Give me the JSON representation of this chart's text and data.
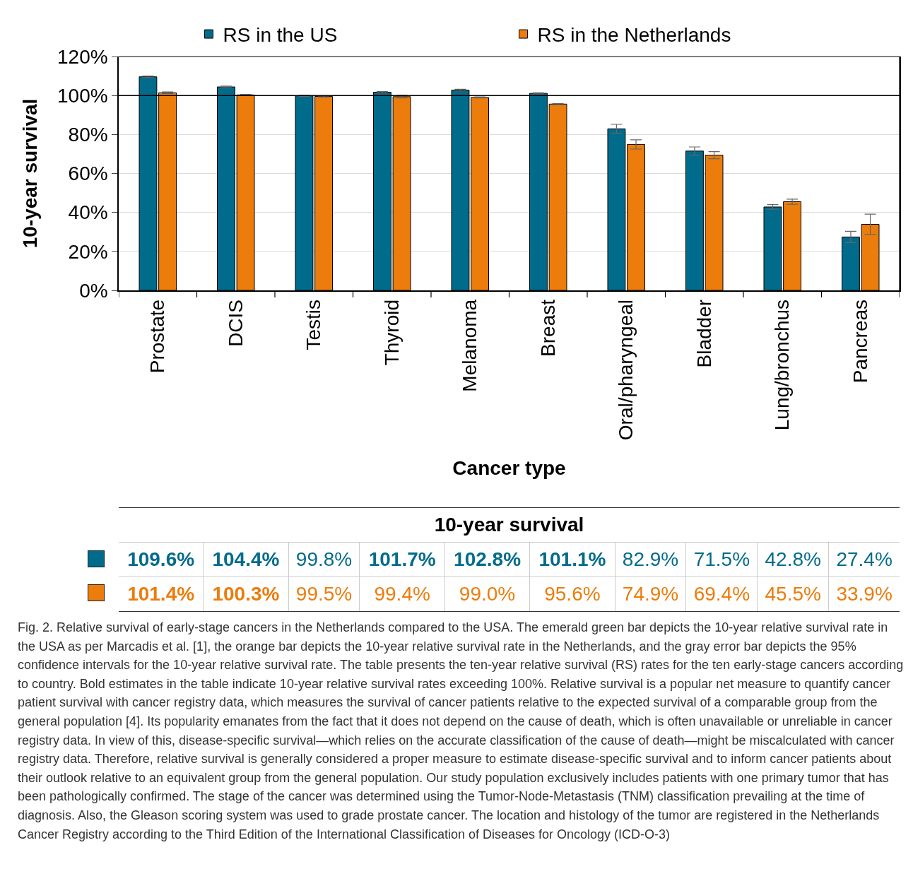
{
  "chart_data": {
    "type": "bar",
    "xlabel": "Cancer type",
    "ylabel": "10-year survival",
    "categories": [
      "Prostate",
      "DCIS",
      "Testis",
      "Thyroid",
      "Melanoma",
      "Breast",
      "Oral/pharyngeal",
      "Bladder",
      "Lung/bronchus",
      "Pancreas"
    ],
    "series": [
      {
        "name": "RS in the US",
        "color": "#016b8c",
        "values": [
          109.6,
          104.4,
          99.8,
          101.7,
          102.8,
          101.1,
          82.9,
          71.5,
          42.8,
          27.4
        ],
        "errors": [
          0.4,
          0.4,
          0.3,
          0.3,
          0.4,
          0.3,
          2.3,
          2.1,
          1.2,
          2.9
        ],
        "value_labels": [
          "109.6%",
          "104.4%",
          "99.8%",
          "101.7%",
          "102.8%",
          "101.1%",
          "82.9%",
          "71.5%",
          "42.8%",
          "27.4%"
        ]
      },
      {
        "name": "RS in the Netherlands",
        "color": "#ec7c0b",
        "values": [
          101.4,
          100.3,
          99.5,
          99.4,
          99.0,
          95.6,
          74.9,
          69.4,
          45.5,
          33.9
        ],
        "errors": [
          0.4,
          0.3,
          0.3,
          0.7,
          0.3,
          0.3,
          2.4,
          1.8,
          1.3,
          5.2
        ],
        "value_labels": [
          "101.4%",
          "100.3%",
          "99.5%",
          "99.4%",
          "99.0%",
          "95.6%",
          "74.9%",
          "69.4%",
          "45.5%",
          "33.9%"
        ]
      }
    ],
    "ylim": [
      0,
      120
    ],
    "yticks": [
      {
        "value": 0,
        "label": "0%"
      },
      {
        "value": 20,
        "label": "20%"
      },
      {
        "value": 40,
        "label": "40%"
      },
      {
        "value": 60,
        "label": "60%"
      },
      {
        "value": 80,
        "label": "80%"
      },
      {
        "value": 100,
        "label": "100%"
      },
      {
        "value": 120,
        "label": "120%"
      }
    ],
    "grid": "y",
    "legend": "top",
    "ref_lines": [
      {
        "axis": "y",
        "value": 100,
        "color": "#000000"
      }
    ],
    "annotations": [
      "10-year survival",
      "Fig. 2. Relative survival of early-stage cancers in the Netherlands compared to the USA. The emerald green bar depicts the 10-year relative survival rate in the USA as per Marcadis et al. [1], the orange bar depicts the 10-year relative survival rate in the Netherlands, and the gray error bar depicts the 95% confidence intervals for the 10-year relative survival rate. The table presents the ten-year relative survival (RS) rates for the ten early-stage cancers according to country. Bold estimates in the table indicate 10-year relative survival rates exceeding 100%. Relative survival is a popular net measure to quantify cancer patient survival with cancer registry data, which measures the survival of cancer patients relative to the expected survival of a comparable group from the general population [4]. Its popularity emanates from the fact that it does not depend on the cause of death, which is often unavailable or unreliable in cancer registry data. In view of this, disease-specific survival—which relies on the accurate classification of the cause of death—might be miscalculated with cancer registry data. Therefore, relative survival is generally considered a proper measure to estimate disease-specific survival and to inform cancer patients about their outlook relative to an equivalent group from the general population. Our study population exclusively includes patients with one primary tumor that has been pathologically confirmed. The stage of the cancer was determined using the Tumor-Node-Metastasis (TNM) classification prevailing at the time of diagnosis. Also, the Gleason scoring system was used to grade prostate cancer. The location and histology of the tumor are registered in the Netherlands Cancer Registry according to the Third Edition of the International Classification of Diseases for Oncology (ICD-O-3)"
    ]
  }
}
